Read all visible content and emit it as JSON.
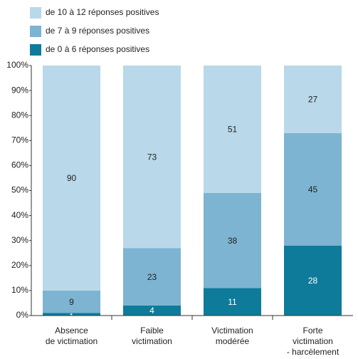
{
  "chart_data": {
    "type": "stacked_bar",
    "categories": [
      [
        "Absence",
        "de victimation"
      ],
      [
        "Faible",
        "victimation"
      ],
      [
        "Victimation",
        "modérée"
      ],
      [
        "Forte",
        "victimation",
        "- harcèlement"
      ]
    ],
    "series": [
      {
        "name": "de 0 à 6 réponses positives",
        "color": "#0e7b9b",
        "values": [
          1,
          4,
          11,
          28
        ]
      },
      {
        "name": "de 7 à 9 réponses positives",
        "color": "#7db4d1",
        "values": [
          9,
          23,
          38,
          45
        ]
      },
      {
        "name": "de 10 à 12 réponses positives",
        "color": "#b9d8e9",
        "values": [
          90,
          73,
          51,
          27
        ]
      }
    ],
    "ylim": [
      0,
      100
    ],
    "yticks": [
      {
        "value": 0,
        "label": "0%"
      },
      {
        "value": 10,
        "label": "10%"
      },
      {
        "value": 20,
        "label": "20%"
      },
      {
        "value": 30,
        "label": "30%"
      },
      {
        "value": 40,
        "label": "40%"
      },
      {
        "value": 50,
        "label": "50%"
      },
      {
        "value": 60,
        "label": "60%"
      },
      {
        "value": 70,
        "label": "70%"
      },
      {
        "value": 80,
        "label": "80%"
      },
      {
        "value": 90,
        "label": "90%"
      },
      {
        "value": 100,
        "label": "100%"
      }
    ],
    "legend": "top-left"
  }
}
